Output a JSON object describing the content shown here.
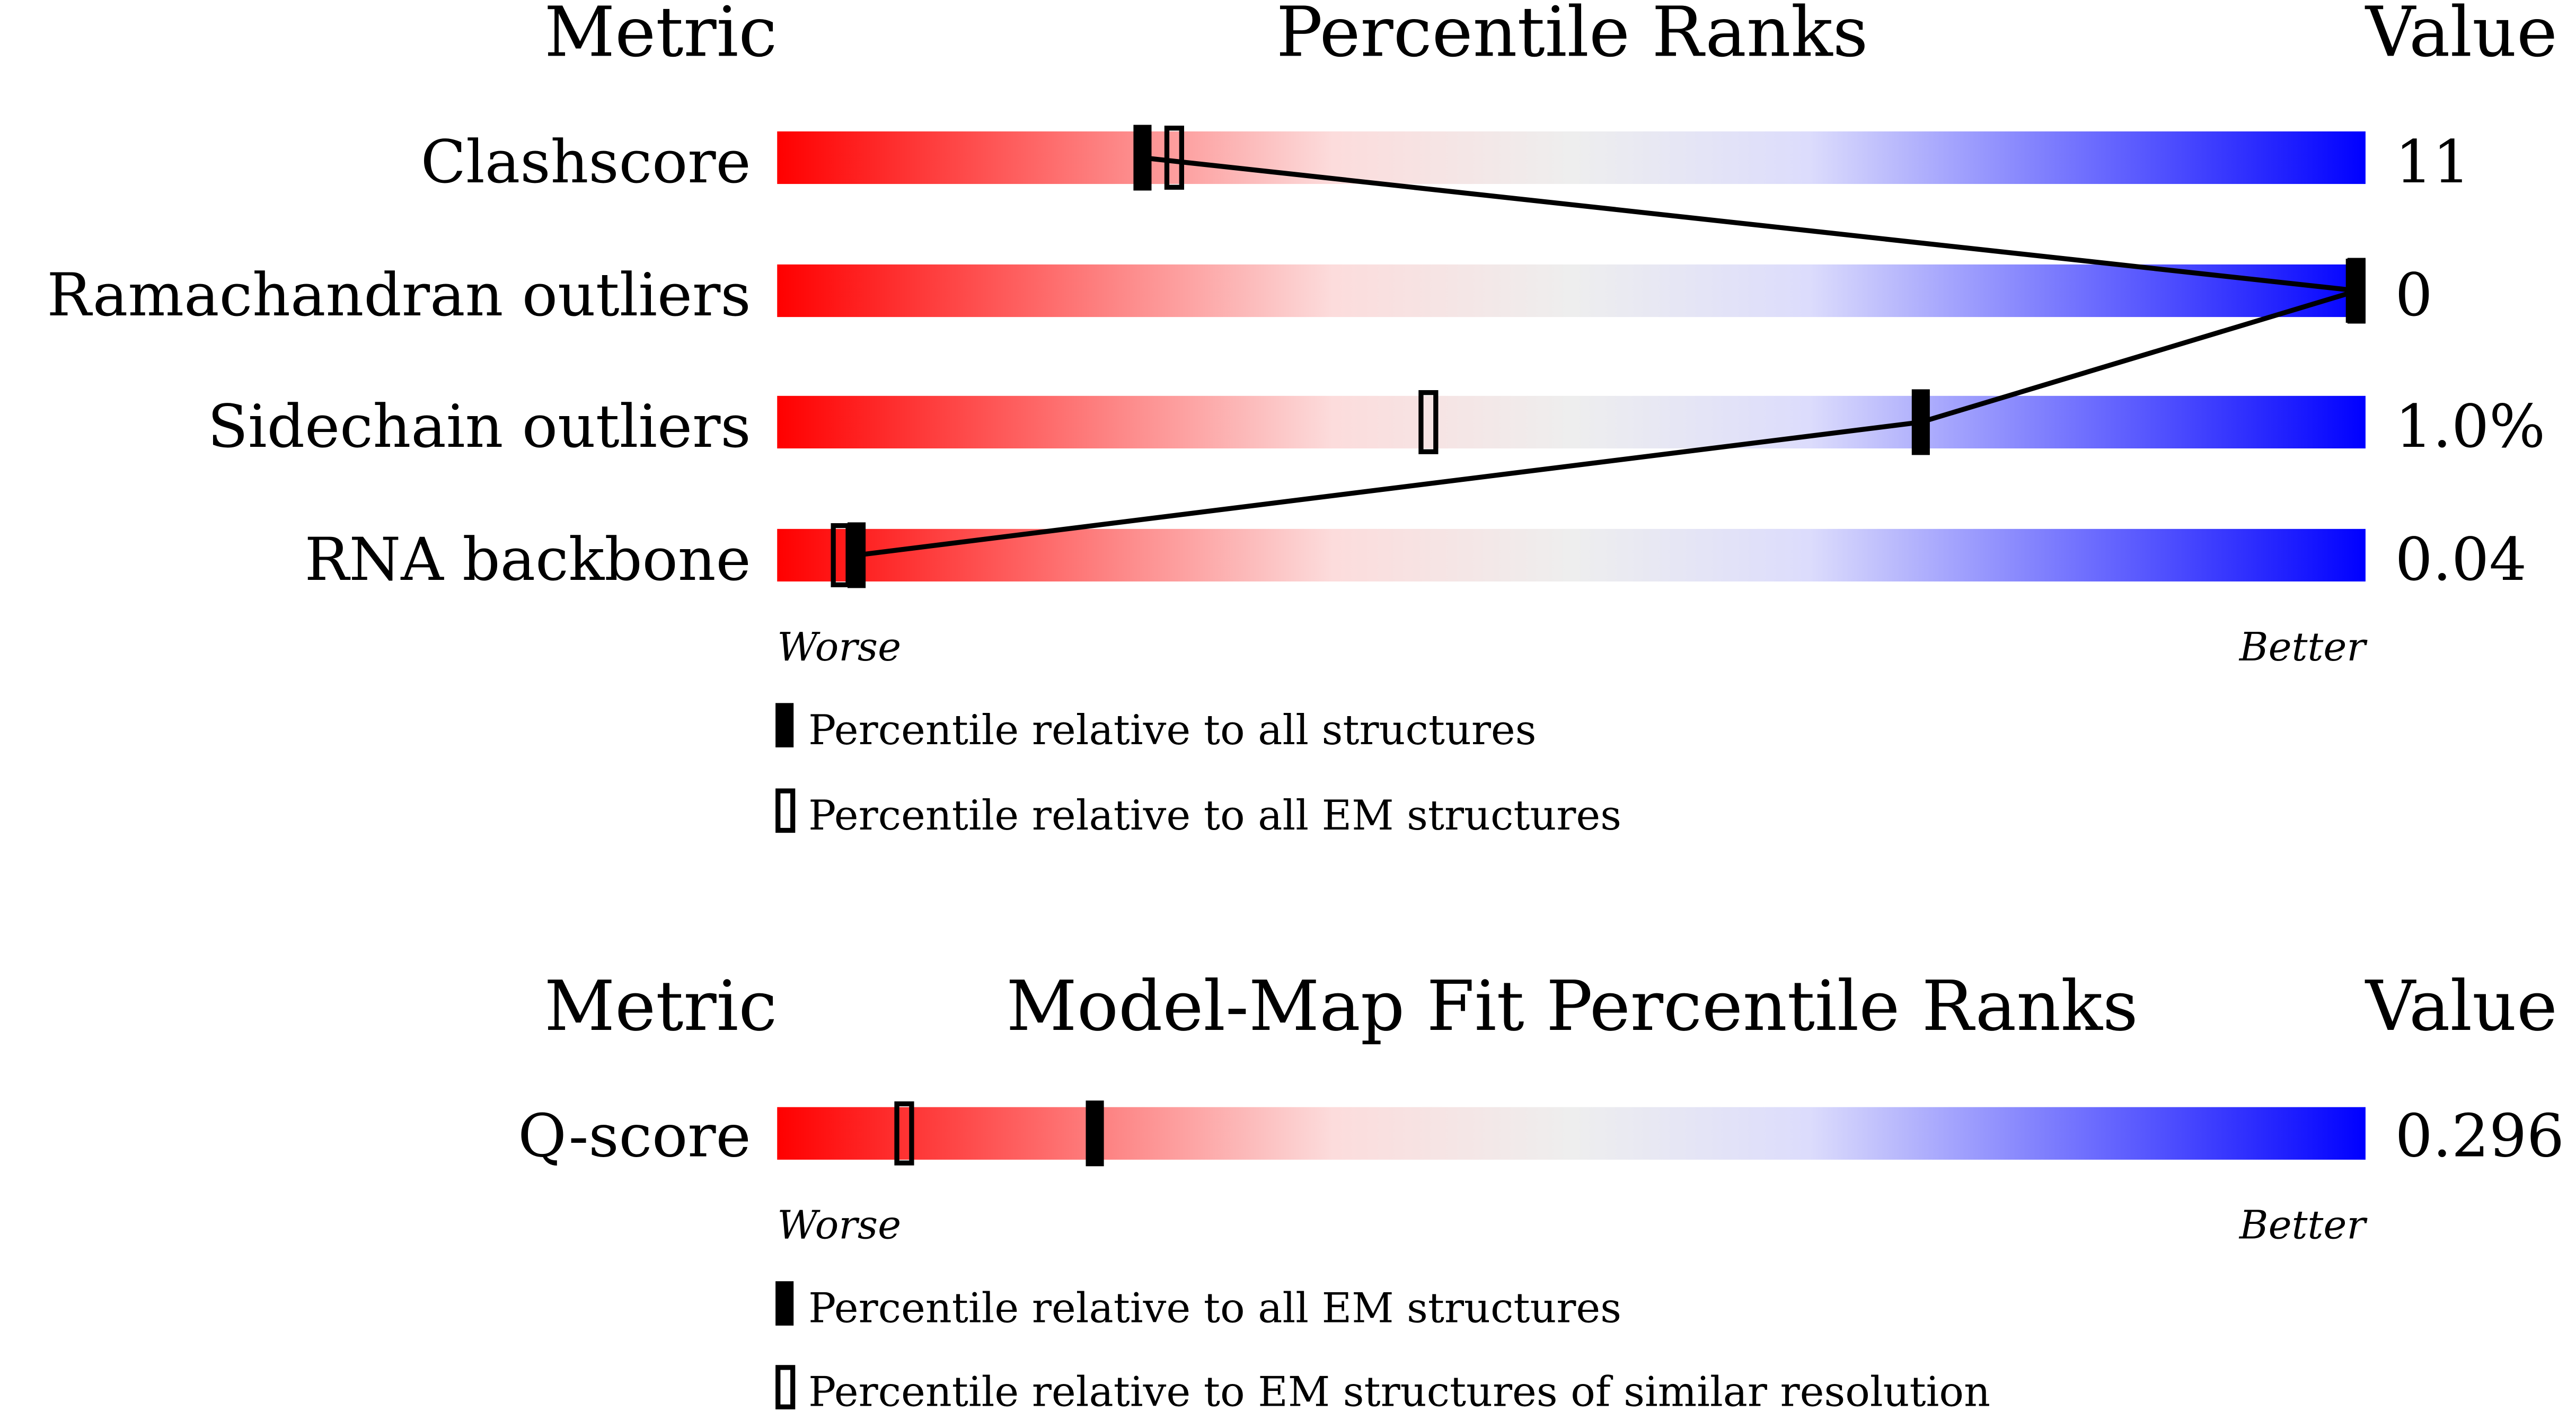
{
  "chart_data": [
    {
      "type": "percentile-slider",
      "header": {
        "metric": "Metric",
        "title": "Percentile Ranks",
        "value": "Value"
      },
      "scale": {
        "low_label": "Worse",
        "high_label": "Better",
        "range": [
          0,
          100
        ]
      },
      "rows": [
        {
          "metric": "Clashscore",
          "value": "11",
          "all": 23,
          "em": 25
        },
        {
          "metric": "Ramachandran outliers",
          "value": "0",
          "all": 100,
          "em": 100
        },
        {
          "metric": "Sidechain outliers",
          "value": "1.0%",
          "all": 72,
          "em": 41
        },
        {
          "metric": "RNA backbone",
          "value": "0.04",
          "all": 5,
          "em": 4
        }
      ],
      "legend": [
        {
          "marker": "filled",
          "label": "Percentile relative to all structures"
        },
        {
          "marker": "open",
          "label": "Percentile relative to all EM structures"
        }
      ]
    },
    {
      "type": "percentile-slider",
      "header": {
        "metric": "Metric",
        "title": "Model-Map Fit Percentile Ranks",
        "value": "Value"
      },
      "scale": {
        "low_label": "Worse",
        "high_label": "Better",
        "range": [
          0,
          100
        ]
      },
      "rows": [
        {
          "metric": "Q-score",
          "value": "0.296",
          "all": 20,
          "em": 8
        }
      ],
      "legend": [
        {
          "marker": "filled",
          "label": "Percentile relative to all EM structures"
        },
        {
          "marker": "open",
          "label": "Percentile relative to EM structures of similar resolution"
        }
      ]
    }
  ],
  "colors": {
    "worse": "#ff0000",
    "mid_light_red": "#fcdcdc",
    "neutral": "#eeeeee",
    "mid_light_blue": "#dcdcfc",
    "better": "#0000ff",
    "marker": "#000000"
  }
}
